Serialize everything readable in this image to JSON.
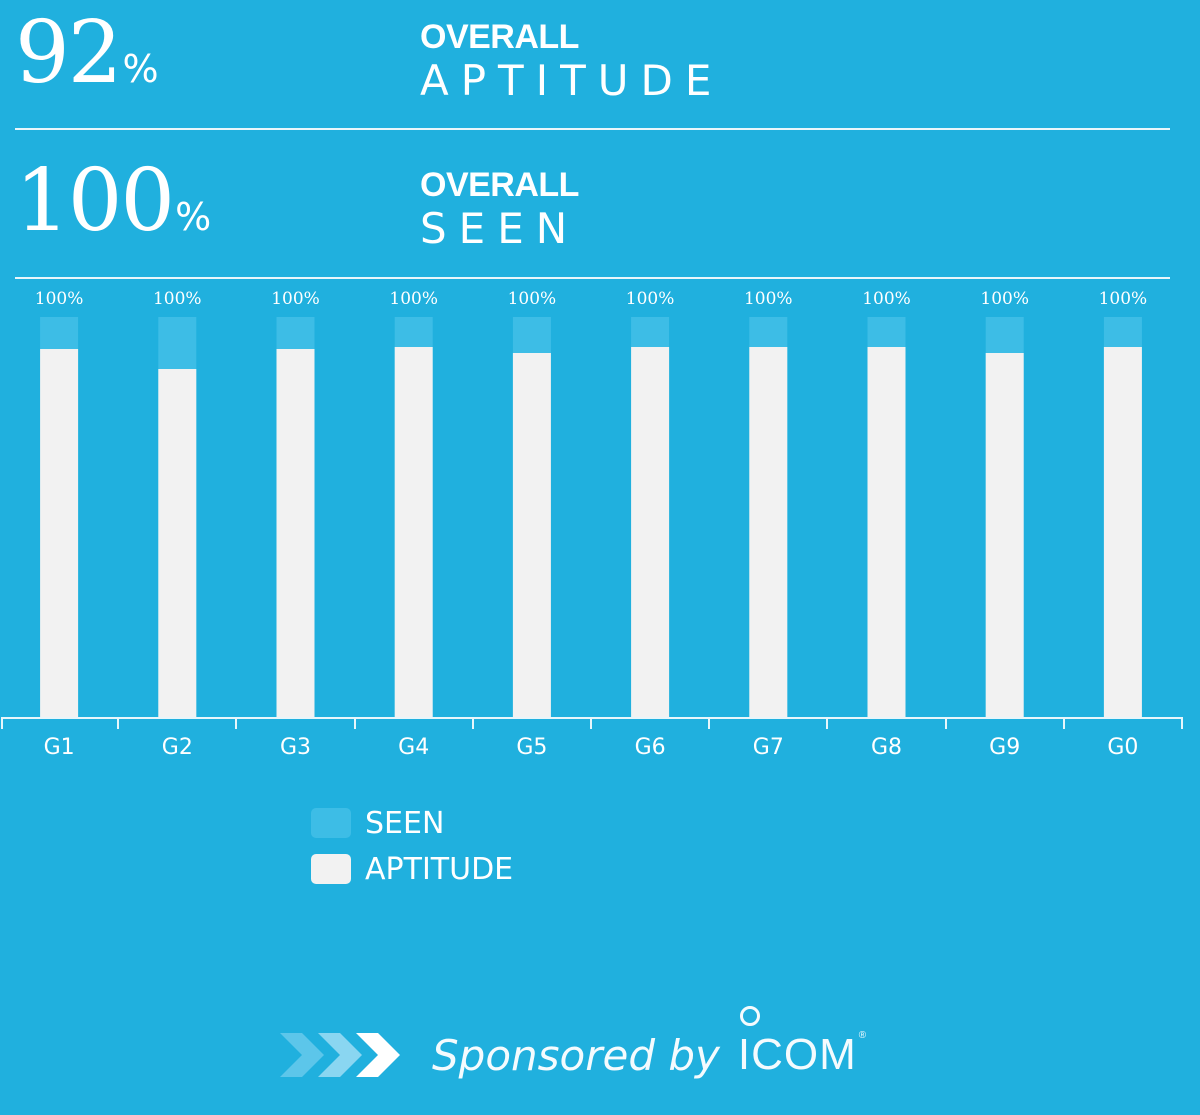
{
  "stats": [
    {
      "value": "92",
      "unit": "%",
      "label_top": "OVERALL",
      "label_bottom": "APTITUDE"
    },
    {
      "value": "100",
      "unit": "%",
      "label_top": "OVERALL",
      "label_bottom": "SEEN"
    }
  ],
  "chart_data": {
    "type": "bar",
    "categories": [
      "G1",
      "G2",
      "G3",
      "G4",
      "G5",
      "G6",
      "G7",
      "G8",
      "G9",
      "G0"
    ],
    "series": [
      {
        "name": "SEEN",
        "values": [
          100,
          100,
          100,
          100,
          100,
          100,
          100,
          100,
          100,
          100
        ]
      },
      {
        "name": "APTITUDE",
        "values": [
          92,
          87,
          92,
          92.5,
          91,
          92.5,
          92.5,
          92.5,
          91,
          92.5
        ]
      }
    ],
    "data_labels": [
      "100%",
      "100%",
      "100%",
      "100%",
      "100%",
      "100%",
      "100%",
      "100%",
      "100%",
      "100%"
    ],
    "ylim": [
      0,
      100
    ],
    "grid": false,
    "legend": "bottom-left",
    "colors": {
      "SEEN": "#3dbde6",
      "APTITUDE": "#f2f2f2"
    }
  },
  "legend": {
    "items": [
      {
        "label": "SEEN",
        "color": "#3dbde6"
      },
      {
        "label": "APTITUDE",
        "color": "#f2f2f2"
      }
    ]
  },
  "sponsor": {
    "text": "Sponsored by",
    "brand": "ICOM",
    "reg_mark": "®",
    "icon": "chevron-arrows-icon"
  },
  "colors": {
    "background": "#20b0de",
    "text": "#ffffff"
  }
}
